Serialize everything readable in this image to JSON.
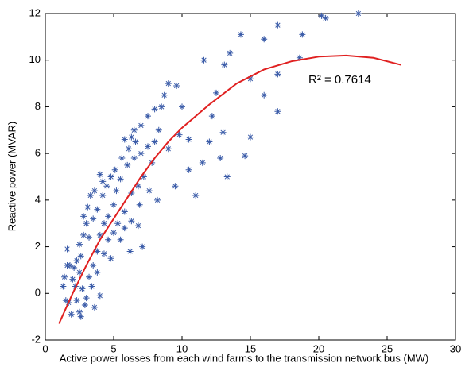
{
  "chart_data": {
    "type": "scatter",
    "xlabel": "Active power losses from each wind farms to the transmission network bus (MW)",
    "ylabel": "Reactive power (MVAR)",
    "annotation": "R² = 0.7614",
    "xlim": [
      0,
      30
    ],
    "xticks": [
      0,
      5,
      10,
      15,
      20,
      25,
      30
    ],
    "ylim": [
      -2,
      12
    ],
    "yticks": [
      -2,
      0,
      2,
      4,
      6,
      8,
      10,
      12
    ],
    "series": [
      {
        "color": "#3a5ba8",
        "marker": "*",
        "x": [
          20.2,
          20.5,
          22.9,
          18.8,
          17,
          16,
          14.3,
          13.5,
          11.6,
          13.1,
          15,
          17,
          18.6,
          16,
          15,
          17,
          14.6,
          13.3,
          12,
          11,
          10.5,
          13,
          12.2,
          9.5,
          9,
          9,
          8.7,
          8.5,
          8,
          7.5,
          7,
          6.5,
          6.3,
          5.8,
          6,
          6.5,
          7,
          7.5,
          8,
          8.3,
          7.8,
          7.2,
          6.8,
          6.3,
          5.8,
          6.3,
          6.8,
          7.1,
          6.2,
          5.5,
          5.2,
          5,
          4.8,
          4.5,
          4.2,
          4,
          3.8,
          3.5,
          3.3,
          3,
          3.2,
          2.8,
          2.5,
          2.6,
          2.3,
          2.1,
          2,
          2.2,
          2.5,
          2.7,
          3,
          3.2,
          3.5,
          3.8,
          4,
          4.3,
          4.6,
          5,
          5.3,
          5.5,
          4.8,
          4.3,
          3.8,
          3.4,
          2.9,
          2.5,
          2.3,
          1.9,
          1.7,
          1.5,
          1.3,
          1.6,
          1.8,
          1.4,
          1.6,
          2.8,
          3.1,
          3.6,
          4.2,
          5.1,
          5.6,
          6.1,
          6.6,
          4.6,
          5.8,
          8.2,
          9.8,
          10.5,
          11.5,
          12.5,
          10,
          6.9,
          7.6,
          4,
          3.6,
          2.6,
          12.8,
          9.6
        ],
        "values": [
          11.9,
          11.8,
          12,
          11.1,
          11.5,
          10.9,
          11.1,
          10.3,
          10,
          9.8,
          9.2,
          9.4,
          10.1,
          8.5,
          6.7,
          7.8,
          5.9,
          5,
          6.5,
          4.2,
          5.3,
          6.9,
          7.6,
          4.6,
          6.2,
          9,
          8.5,
          8,
          7.9,
          7.6,
          7.2,
          7,
          6.7,
          6.6,
          5.5,
          5.8,
          6,
          6.3,
          6.5,
          7,
          5.6,
          5,
          4.6,
          4.3,
          3.5,
          3.1,
          2.9,
          2,
          1.8,
          4.9,
          4.4,
          3.8,
          5,
          4.6,
          4.2,
          5.1,
          3.6,
          3.2,
          4.2,
          3,
          2.4,
          2.5,
          2.1,
          1.6,
          1.4,
          1.1,
          0.6,
          0.3,
          0.9,
          0.2,
          -0.2,
          0.7,
          1.2,
          1.8,
          2.5,
          3,
          2.3,
          2.6,
          3,
          2.3,
          1.5,
          1.7,
          0.9,
          0.3,
          -0.5,
          -0.8,
          -0.3,
          -0.9,
          -0.4,
          -0.3,
          0.3,
          1.2,
          1.2,
          0.7,
          1.9,
          3.3,
          3.7,
          4.4,
          4.8,
          5.3,
          5.8,
          6.2,
          6.5,
          3.3,
          2.8,
          4,
          6.8,
          6.6,
          5.6,
          8.6,
          8,
          3.8,
          4.4,
          -0.1,
          -0.6,
          -1,
          5.8,
          8.9
        ]
      },
      {
        "color": "#e02020",
        "line": true,
        "x": [
          1,
          2,
          3,
          4,
          5,
          6,
          7,
          8,
          9,
          10,
          12,
          14,
          16,
          18,
          20,
          22,
          24,
          26
        ],
        "values": [
          -1.3,
          0,
          1.2,
          2.3,
          3.2,
          4.1,
          5,
          5.8,
          6.5,
          7.1,
          8.1,
          9,
          9.6,
          9.95,
          10.15,
          10.2,
          10.1,
          9.8
        ]
      }
    ]
  }
}
